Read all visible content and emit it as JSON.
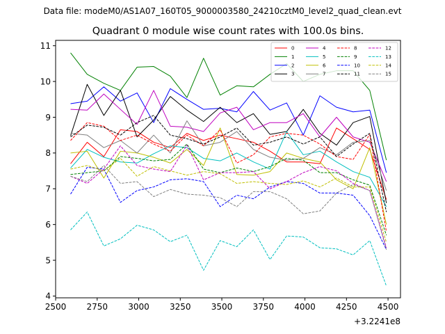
{
  "figure": {
    "suptitle": "Data file: modeM0/AS1A07_160T05_9000003580_24210cztM0_level2_quad_clean.evt",
    "offset_label": "+3.2241e8"
  },
  "chart_data": {
    "type": "line",
    "title": "Quadrant 0 module wise count rates with 100.0s bins.",
    "xlabel": "",
    "ylabel": "",
    "xlim": [
      2500,
      4575
    ],
    "ylim": [
      3.95,
      11.15
    ],
    "xticks": [
      2500,
      2750,
      3000,
      3250,
      3500,
      3750,
      4000,
      4250,
      4500
    ],
    "yticks": [
      4,
      5,
      6,
      7,
      8,
      9,
      10,
      11
    ],
    "grid": false,
    "legend": {
      "placement": "top-right",
      "ncol": 4
    },
    "x": [
      2590,
      2690,
      2790,
      2890,
      2990,
      3090,
      3190,
      3290,
      3390,
      3490,
      3590,
      3690,
      3790,
      3890,
      3990,
      4090,
      4190,
      4290,
      4390,
      4490
    ],
    "series": [
      {
        "name": "0",
        "color": "#ff0000",
        "dash": "solid",
        "values": [
          7.7,
          8.3,
          7.9,
          8.65,
          8.6,
          8.3,
          8.15,
          8.55,
          8.35,
          8.5,
          8.4,
          8.3,
          8.05,
          7.75,
          7.75,
          7.7,
          8.7,
          8.4,
          8.1,
          6.7
        ]
      },
      {
        "name": "1",
        "color": "#008000",
        "dash": "solid",
        "values": [
          10.8,
          10.2,
          9.95,
          9.75,
          10.4,
          10.42,
          10.15,
          9.55,
          10.65,
          9.62,
          9.88,
          9.85,
          10.2,
          10.5,
          10.0,
          10.2,
          10.3,
          10.3,
          9.75,
          7.8
        ]
      },
      {
        "name": "2",
        "color": "#0000ff",
        "dash": "solid",
        "values": [
          9.38,
          9.45,
          9.85,
          9.45,
          9.68,
          8.85,
          9.8,
          9.5,
          9.22,
          9.25,
          9.15,
          9.72,
          9.2,
          9.4,
          8.5,
          9.6,
          9.28,
          9.15,
          9.2,
          7.45
        ]
      },
      {
        "name": "3",
        "color": "#000000",
        "dash": "solid",
        "values": [
          8.48,
          9.92,
          9.05,
          9.75,
          8.45,
          8.92,
          9.58,
          9.2,
          8.88,
          9.28,
          8.85,
          9.1,
          8.52,
          8.6,
          9.22,
          8.55,
          8.22,
          8.85,
          9.02,
          6.6
        ]
      },
      {
        "name": "4",
        "color": "#bf00bf",
        "dash": "solid",
        "values": [
          9.22,
          9.2,
          9.65,
          9.22,
          8.8,
          9.75,
          8.75,
          8.72,
          8.6,
          9.12,
          9.28,
          8.65,
          8.85,
          8.85,
          9.1,
          8.45,
          9.0,
          8.45,
          8.3,
          7.2
        ]
      },
      {
        "name": "5",
        "color": "#00bfbf",
        "dash": "solid",
        "values": [
          7.58,
          8.1,
          7.88,
          7.75,
          7.72,
          7.98,
          8.2,
          8.15,
          7.85,
          7.78,
          8.0,
          7.75,
          7.55,
          8.6,
          7.95,
          8.05,
          7.75,
          7.48,
          7.32,
          6.5
        ]
      },
      {
        "name": "6",
        "color": "#bfbf00",
        "dash": "solid",
        "values": [
          8.0,
          8.05,
          7.3,
          8.05,
          8.0,
          7.88,
          7.72,
          8.1,
          7.65,
          8.7,
          7.4,
          7.38,
          7.48,
          8.0,
          7.85,
          7.75,
          7.25,
          7.0,
          8.15,
          6.0
        ]
      },
      {
        "name": "7",
        "color": "#808080",
        "dash": "solid",
        "values": [
          8.55,
          8.5,
          8.15,
          8.35,
          8.0,
          8.5,
          8.0,
          8.9,
          8.2,
          8.3,
          8.6,
          8.1,
          7.88,
          7.8,
          7.85,
          8.15,
          7.95,
          8.3,
          8.35,
          6.95
        ]
      },
      {
        "name": "8",
        "color": "#ff0000",
        "dash": "dashed",
        "values": [
          8.35,
          8.85,
          8.75,
          8.35,
          8.5,
          8.25,
          8.05,
          8.5,
          8.2,
          8.65,
          7.72,
          7.95,
          8.45,
          8.55,
          8.5,
          8.25,
          7.9,
          7.82,
          8.52,
          5.8
        ]
      },
      {
        "name": "9",
        "color": "#008000",
        "dash": "dashed",
        "values": [
          7.4,
          7.45,
          7.5,
          7.9,
          7.85,
          7.78,
          7.82,
          8.25,
          7.55,
          7.45,
          7.58,
          7.48,
          7.62,
          7.85,
          7.8,
          7.45,
          7.45,
          7.25,
          7.1,
          5.7
        ]
      },
      {
        "name": "10",
        "color": "#0000ff",
        "dash": "dashed",
        "values": [
          6.85,
          7.6,
          7.55,
          6.62,
          6.95,
          7.05,
          7.25,
          7.28,
          7.2,
          6.5,
          6.82,
          6.72,
          7.05,
          7.2,
          7.15,
          6.88,
          6.88,
          6.82,
          6.25,
          5.3
        ]
      },
      {
        "name": "11",
        "color": "#000000",
        "dash": "dashed",
        "values": [
          8.45,
          8.78,
          8.72,
          8.5,
          8.85,
          9.05,
          8.5,
          8.4,
          8.25,
          8.45,
          8.7,
          8.22,
          8.3,
          8.45,
          8.25,
          8.45,
          7.9,
          8.25,
          8.55,
          6.35
        ]
      },
      {
        "name": "12",
        "color": "#bf00bf",
        "dash": "dashed",
        "values": [
          7.35,
          7.15,
          7.55,
          8.2,
          7.65,
          7.55,
          7.48,
          8.22,
          7.25,
          7.45,
          7.45,
          7.48,
          7.0,
          7.2,
          7.45,
          7.62,
          7.5,
          7.15,
          6.95,
          5.35
        ]
      },
      {
        "name": "13",
        "color": "#00bfbf",
        "dash": "dashed",
        "values": [
          5.85,
          6.35,
          5.4,
          5.6,
          5.98,
          5.85,
          5.52,
          5.7,
          4.72,
          5.55,
          5.38,
          5.85,
          5.02,
          5.68,
          5.65,
          5.35,
          5.32,
          5.15,
          5.55,
          4.28
        ]
      },
      {
        "name": "14",
        "color": "#bfbf00",
        "dash": "dashed",
        "values": [
          7.55,
          7.65,
          7.5,
          7.85,
          7.35,
          7.62,
          7.5,
          7.38,
          7.48,
          7.42,
          7.15,
          7.2,
          7.15,
          7.12,
          7.22,
          7.05,
          7.3,
          7.05,
          7.05,
          5.5
        ]
      },
      {
        "name": "15",
        "color": "#808080",
        "dash": "dashed",
        "values": [
          7.35,
          7.2,
          7.65,
          7.15,
          7.2,
          6.78,
          6.98,
          6.85,
          6.82,
          6.75,
          6.5,
          6.92,
          6.92,
          6.72,
          6.3,
          6.38,
          6.88,
          7.12,
          6.95,
          5.3
        ]
      }
    ]
  }
}
